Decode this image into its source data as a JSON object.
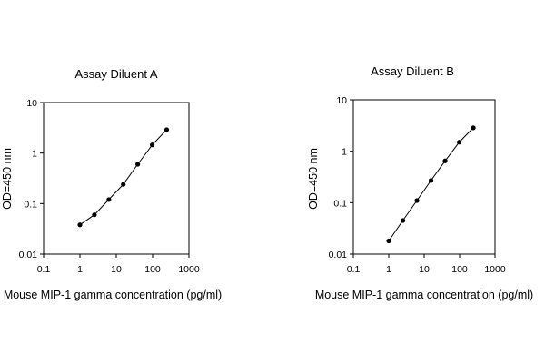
{
  "chart_data": [
    {
      "type": "line",
      "title": "Assay Diluent A",
      "xlabel": "Mouse MIP-1 gamma concentration (pg/ml)",
      "ylabel": "OD=450 nm",
      "x_scale": "log",
      "y_scale": "log",
      "xlim": [
        0.1,
        1000
      ],
      "ylim": [
        0.01,
        10
      ],
      "x_ticks": [
        "0.1",
        "1",
        "10",
        "100",
        "1000"
      ],
      "y_ticks": [
        "0.01",
        "0.1",
        "1",
        "10"
      ],
      "grid": false,
      "series": [
        {
          "x": [
            1,
            2.5,
            6.25,
            15.6,
            39,
            97.7,
            244
          ],
          "y": [
            0.038,
            0.06,
            0.12,
            0.24,
            0.6,
            1.45,
            2.9
          ]
        }
      ]
    },
    {
      "type": "line",
      "title": "Assay Diluent B",
      "xlabel": "Mouse MIP-1 gamma concentration (pg/ml)",
      "ylabel": "OD=450 nm",
      "x_scale": "log",
      "y_scale": "log",
      "xlim": [
        0.1,
        1000
      ],
      "ylim": [
        0.01,
        10
      ],
      "x_ticks": [
        "0.1",
        "1",
        "10",
        "100",
        "1000"
      ],
      "y_ticks": [
        "0.01",
        "0.1",
        "1",
        "10"
      ],
      "grid": false,
      "series": [
        {
          "x": [
            1,
            2.5,
            6.25,
            15.6,
            39,
            97.7,
            244
          ],
          "y": [
            0.018,
            0.045,
            0.11,
            0.27,
            0.65,
            1.5,
            2.85
          ]
        }
      ]
    }
  ]
}
